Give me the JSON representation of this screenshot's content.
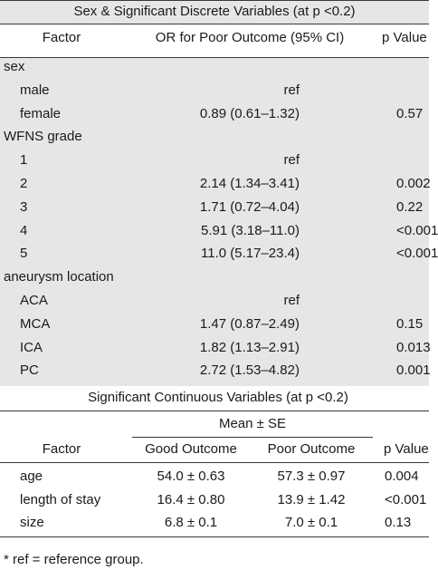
{
  "discrete": {
    "title": "Sex & Significant Discrete Variables (at p <0.2)",
    "headers": {
      "factor": "Factor",
      "or": "OR for Poor Outcome (95% CI)",
      "p": "p Value"
    },
    "rows": [
      {
        "factor": "sex",
        "indent": false,
        "or": "",
        "p": ""
      },
      {
        "factor": "male",
        "indent": true,
        "or": "ref",
        "p": ""
      },
      {
        "factor": "female",
        "indent": true,
        "or": "0.89 (0.61–1.32)",
        "p": "0.57"
      },
      {
        "factor": "WFNS grade",
        "indent": false,
        "or": "",
        "p": ""
      },
      {
        "factor": "1",
        "indent": true,
        "or": "ref",
        "p": ""
      },
      {
        "factor": "2",
        "indent": true,
        "or": "2.14 (1.34–3.41)",
        "p": "0.002"
      },
      {
        "factor": "3",
        "indent": true,
        "or": "1.71 (0.72–4.04)",
        "p": "0.22"
      },
      {
        "factor": "4",
        "indent": true,
        "or": "5.91 (3.18–11.0)",
        "p": "<0.001"
      },
      {
        "factor": "5",
        "indent": true,
        "or": "11.0 (5.17–23.4)",
        "p": "<0.001"
      },
      {
        "factor": "aneurysm location",
        "indent": false,
        "or": "",
        "p": ""
      },
      {
        "factor": "ACA",
        "indent": true,
        "or": "ref",
        "p": ""
      },
      {
        "factor": "MCA",
        "indent": true,
        "or": "1.47 (0.87–2.49)",
        "p": "0.15"
      },
      {
        "factor": "ICA",
        "indent": true,
        "or": "1.82 (1.13–2.91)",
        "p": "0.013"
      },
      {
        "factor": "PC",
        "indent": true,
        "or": "2.72 (1.53–4.82)",
        "p": "0.001"
      }
    ]
  },
  "continuous": {
    "title": "Significant Continuous Variables (at p <0.2)",
    "group_header": "Mean ± SE",
    "headers": {
      "factor": "Factor",
      "good": "Good Outcome",
      "poor": "Poor Outcome",
      "p": "p Value"
    },
    "rows": [
      {
        "factor": "age",
        "good": "54.0 ± 0.63",
        "poor": "57.3 ± 0.97",
        "p": "0.004"
      },
      {
        "factor": "length of stay",
        "good": "16.4 ± 0.80",
        "poor": "13.9 ± 1.42",
        "p": "<0.001"
      },
      {
        "factor": "size",
        "good": "6.8 ± 0.1",
        "poor": "7.0 ± 0.1",
        "p": "0.13"
      }
    ]
  },
  "footnote": "*  ref = reference group."
}
